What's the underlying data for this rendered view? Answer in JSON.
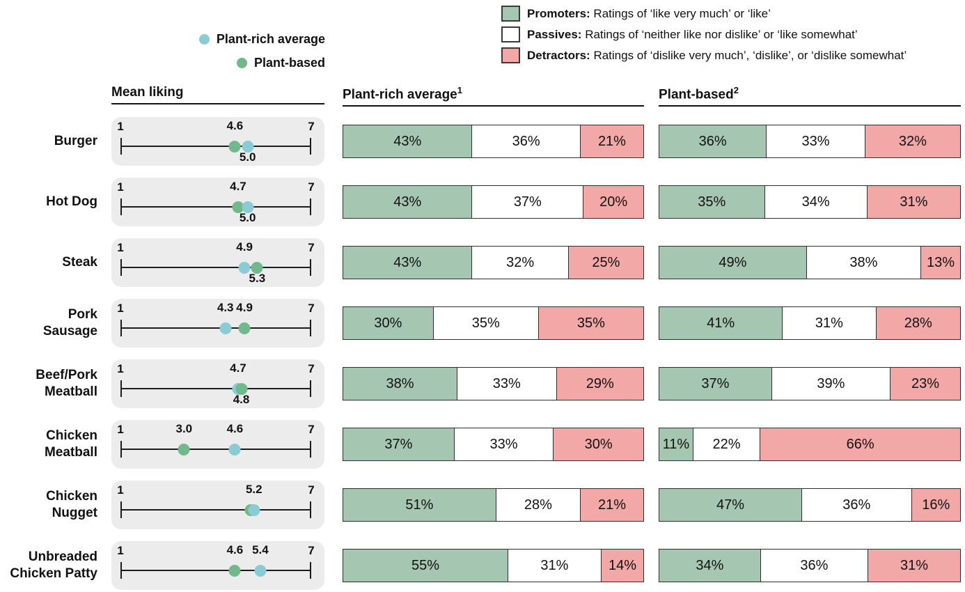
{
  "dot_legend": {
    "items": [
      {
        "label": "Plant-rich average",
        "series": "plant_rich"
      },
      {
        "label": "Plant-based",
        "series": "plant_based"
      }
    ]
  },
  "segment_legend": {
    "items": [
      {
        "term": "Promoters:",
        "desc": "Ratings of ‘like very much’ or ‘like’",
        "color_key": "promoter"
      },
      {
        "term": "Passives:",
        "desc": "Ratings of ‘neither like nor dislike’ or ‘like somewhat’",
        "color_key": "passive"
      },
      {
        "term": "Detractors:",
        "desc": "Ratings of ‘dislike very much’, ‘dislike’, or ‘dislike somewhat’",
        "color_key": "detractor"
      }
    ]
  },
  "headers": {
    "mean": "Mean liking",
    "plant_rich": "Plant-rich average",
    "plant_rich_sup": "1",
    "plant_based": "Plant-based",
    "plant_based_sup": "2"
  },
  "colors": {
    "promoter": "#a5c6b0",
    "passive": "#ffffff",
    "detractor": "#f2a8a6",
    "plant_rich_dot": "#8bcbd4",
    "plant_based_dot": "#71b88b",
    "panel_bg": "#ececec",
    "bar_border": "#2e2e2e"
  },
  "chart_data": {
    "type": "table",
    "description": "Mean liking dot plot (1-7 scale) plus stacked promoter/passive/detractor bars for plant-rich average vs plant-based products",
    "scale": {
      "min": 1,
      "max": 7
    },
    "segment_series": [
      "Promoters",
      "Passives",
      "Detractors"
    ],
    "rows": [
      {
        "label": "Burger",
        "mean_liking": {
          "plant_rich": 5.0,
          "plant_based": 4.6
        },
        "value_labels": [
          {
            "text": "4.6",
            "series": "plant_based",
            "pos": "above"
          },
          {
            "text": "5.0",
            "series": "plant_rich",
            "pos": "below"
          }
        ],
        "plant_rich_pct": [
          43,
          36,
          21
        ],
        "plant_based_pct": [
          36,
          33,
          32
        ]
      },
      {
        "label": "Hot Dog",
        "mean_liking": {
          "plant_rich": 5.0,
          "plant_based": 4.7
        },
        "value_labels": [
          {
            "text": "4.7",
            "series": "plant_based",
            "pos": "above"
          },
          {
            "text": "5.0",
            "series": "plant_rich",
            "pos": "below"
          }
        ],
        "plant_rich_pct": [
          43,
          37,
          20
        ],
        "plant_based_pct": [
          35,
          34,
          31
        ]
      },
      {
        "label": "Steak",
        "mean_liking": {
          "plant_rich": 4.9,
          "plant_based": 5.3
        },
        "value_labels": [
          {
            "text": "4.9",
            "series": "plant_rich",
            "pos": "above"
          },
          {
            "text": "5.3",
            "series": "plant_based",
            "pos": "below"
          }
        ],
        "plant_rich_pct": [
          43,
          32,
          25
        ],
        "plant_based_pct": [
          49,
          38,
          13
        ]
      },
      {
        "label": "Pork\nSausage",
        "mean_liking": {
          "plant_rich": 4.3,
          "plant_based": 4.9
        },
        "value_labels": [
          {
            "text": "4.3",
            "series": "plant_rich",
            "pos": "above"
          },
          {
            "text": "4.9",
            "series": "plant_based",
            "pos": "above"
          }
        ],
        "plant_rich_pct": [
          30,
          35,
          35
        ],
        "plant_based_pct": [
          41,
          31,
          28
        ]
      },
      {
        "label": "Beef/Pork\nMeatball",
        "mean_liking": {
          "plant_rich": 4.7,
          "plant_based": 4.8
        },
        "value_labels": [
          {
            "text": "4.7",
            "series": "plant_rich",
            "pos": "above"
          },
          {
            "text": "4.8",
            "series": "plant_based",
            "pos": "below"
          }
        ],
        "plant_rich_pct": [
          38,
          33,
          29
        ],
        "plant_based_pct": [
          37,
          39,
          23
        ]
      },
      {
        "label": "Chicken\nMeatball",
        "mean_liking": {
          "plant_rich": 4.6,
          "plant_based": 3.0
        },
        "value_labels": [
          {
            "text": "3.0",
            "series": "plant_based",
            "pos": "above"
          },
          {
            "text": "4.6",
            "series": "plant_rich",
            "pos": "above"
          }
        ],
        "plant_rich_pct": [
          37,
          33,
          30
        ],
        "plant_based_pct": [
          11,
          22,
          66
        ]
      },
      {
        "label": "Chicken\nNugget",
        "mean_liking": {
          "plant_rich": 5.2,
          "plant_based": 5.2
        },
        "value_labels": [
          {
            "text": "5.2",
            "series": "plant_rich",
            "pos": "above"
          }
        ],
        "plant_rich_pct": [
          51,
          28,
          21
        ],
        "plant_based_pct": [
          47,
          36,
          16
        ]
      },
      {
        "label": "Unbreaded\nChicken Patty",
        "mean_liking": {
          "plant_rich": 5.4,
          "plant_based": 4.6
        },
        "value_labels": [
          {
            "text": "4.6",
            "series": "plant_based",
            "pos": "above"
          },
          {
            "text": "5.4",
            "series": "plant_rich",
            "pos": "above"
          }
        ],
        "plant_rich_pct": [
          55,
          31,
          14
        ],
        "plant_based_pct": [
          34,
          36,
          31
        ]
      }
    ]
  }
}
